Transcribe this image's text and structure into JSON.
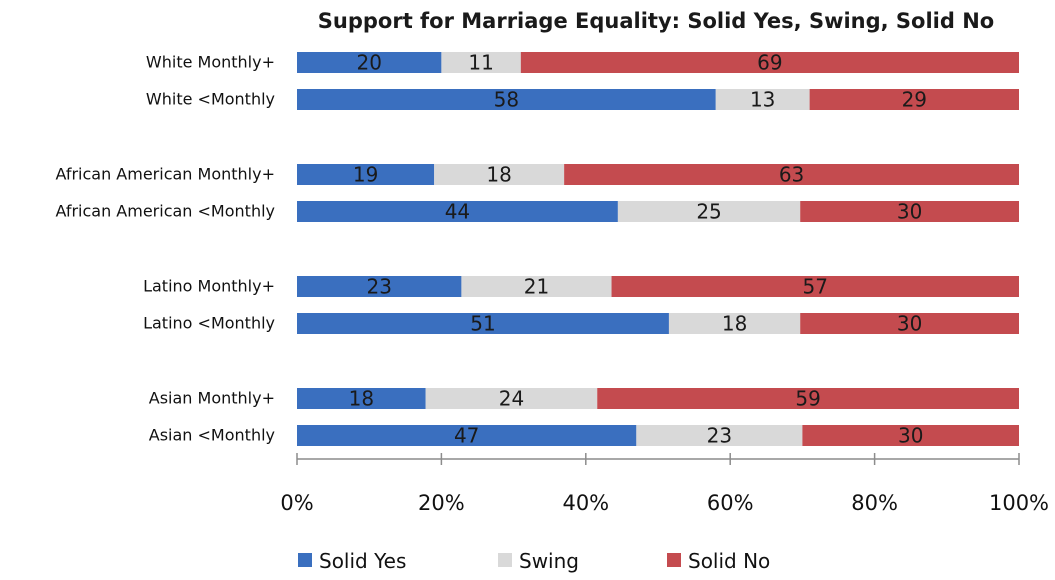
{
  "chart_data": {
    "type": "bar",
    "orientation": "horizontal",
    "stacked": "percent",
    "title": "Support for Marriage Equality:  Solid Yes, Swing, Solid No",
    "categories": [
      "White Monthly+",
      "White <Monthly",
      "African American Monthly+",
      "African American <Monthly",
      "Latino Monthly+",
      "Latino <Monthly",
      "Asian Monthly+",
      "Asian <Monthly"
    ],
    "series": [
      {
        "name": "Solid Yes",
        "color": "#3a6fbf",
        "values": [
          20,
          58,
          19,
          44,
          23,
          51,
          18,
          47
        ]
      },
      {
        "name": "Swing",
        "color": "#d9d9d9",
        "values": [
          11,
          13,
          18,
          25,
          21,
          18,
          24,
          23
        ]
      },
      {
        "name": "Solid No",
        "color": "#c44b4f",
        "values": [
          69,
          29,
          63,
          30,
          57,
          30,
          59,
          30
        ]
      }
    ],
    "xlim": [
      0,
      100
    ],
    "x_ticks": [
      "0%",
      "20%",
      "40%",
      "60%",
      "80%",
      "100%"
    ],
    "xlabel": "",
    "ylabel": "",
    "grid": false,
    "legend_position": "bottom"
  }
}
